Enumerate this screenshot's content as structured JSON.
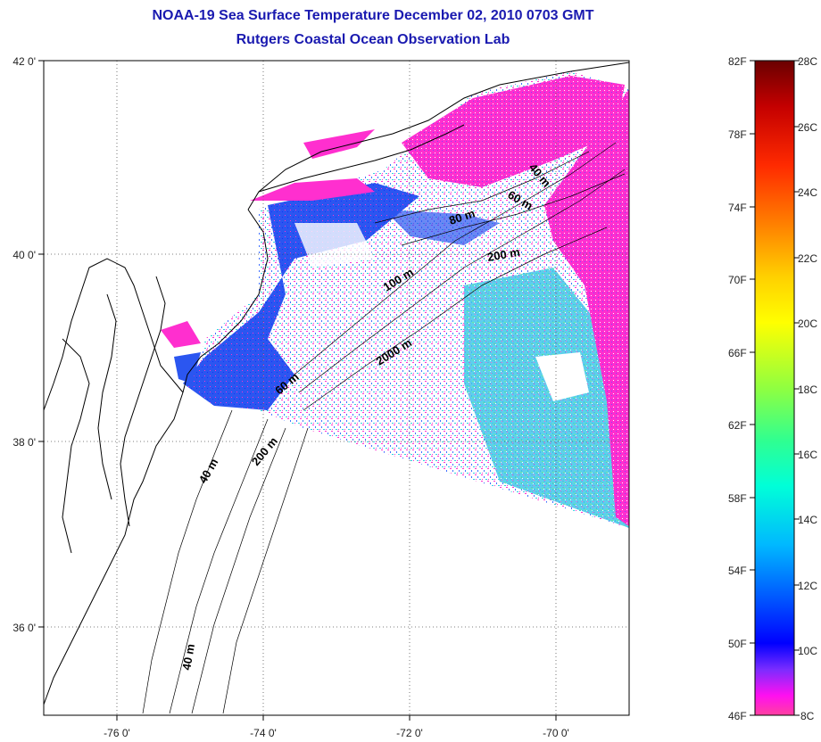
{
  "title_line1": "NOAA-19 Sea Surface Temperature December 02, 2010 0703 GMT",
  "title_line2": "Rutgers Coastal Ocean Observation Lab",
  "map": {
    "lon_range": [
      -77.0,
      -69.0
    ],
    "lat_range": [
      35.0,
      42.0
    ],
    "grid": "dotted",
    "lon_ticks": [
      "-76 0'",
      "-74 0'",
      "-72 0'",
      "-70 0'"
    ],
    "lat_ticks": [
      "42 0'",
      "40 0'",
      "38 0'",
      "36 0'"
    ],
    "depth_labels": [
      {
        "text": "40 m"
      },
      {
        "text": "60 m"
      },
      {
        "text": "80 m"
      },
      {
        "text": "200 m"
      },
      {
        "text": "100 m"
      },
      {
        "text": "2000 m"
      },
      {
        "text": "60 m"
      },
      {
        "text": "40 m"
      },
      {
        "text": "200 m"
      },
      {
        "text": "40 m"
      }
    ]
  },
  "colorbar": {
    "fahrenheit_labels": [
      "82F",
      "78F",
      "74F",
      "70F",
      "66F",
      "62F",
      "58F",
      "54F",
      "50F",
      "46F"
    ],
    "celsius_labels": [
      "28C",
      "26C",
      "24C",
      "22C",
      "20C",
      "18C",
      "16C",
      "14C",
      "12C",
      "10C",
      "8C"
    ],
    "colors_top_to_bottom": [
      "#7a0000",
      "#cc0000",
      "#ff2000",
      "#ff8000",
      "#ffd000",
      "#ffff00",
      "#a0ff40",
      "#40ff80",
      "#00ffd0",
      "#00c0ff",
      "#0060ff",
      "#0000ff",
      "#8030ff",
      "#ff00ff",
      "#ff40a0"
    ]
  }
}
